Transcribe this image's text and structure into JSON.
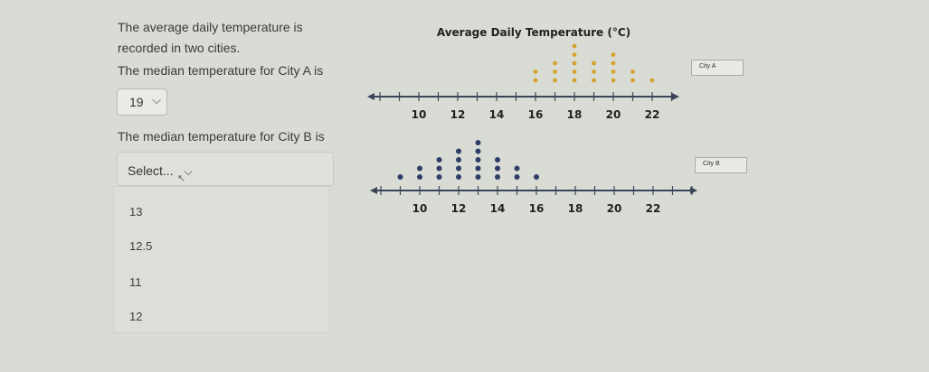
{
  "question": {
    "line1": "The average daily temperature is",
    "line2": "recorded in two cities.",
    "prompt_a": "The median temperature for City A is",
    "answer_a": "19",
    "prompt_b": "The median temperature for City B is",
    "select_placeholder": "Select...",
    "options": [
      "13",
      "12.5",
      "11",
      "12"
    ]
  },
  "colors": {
    "city_a_dot": "#d4a32f",
    "city_b_dot": "#2f3c66",
    "axis": "#3b4558"
  },
  "chart_data": [
    {
      "type": "scatter",
      "title": "Average Daily Temperature (°C)",
      "legend": "City A",
      "xlim": [
        8,
        24
      ],
      "ticks": [
        10,
        12,
        14,
        16,
        18,
        20,
        22
      ],
      "points": [
        {
          "x": 16,
          "count": 2
        },
        {
          "x": 17,
          "count": 3
        },
        {
          "x": 18,
          "count": 5
        },
        {
          "x": 19,
          "count": 3
        },
        {
          "x": 20,
          "count": 4
        },
        {
          "x": 21,
          "count": 2
        },
        {
          "x": 22,
          "count": 1
        }
      ]
    },
    {
      "type": "scatter",
      "title": "",
      "legend": "City B",
      "xlim": [
        8,
        24
      ],
      "ticks": [
        10,
        12,
        14,
        16,
        18,
        20,
        22
      ],
      "points": [
        {
          "x": 9,
          "count": 1
        },
        {
          "x": 10,
          "count": 2
        },
        {
          "x": 11,
          "count": 3
        },
        {
          "x": 12,
          "count": 4
        },
        {
          "x": 13,
          "count": 5
        },
        {
          "x": 14,
          "count": 3
        },
        {
          "x": 15,
          "count": 2
        },
        {
          "x": 16,
          "count": 1
        }
      ]
    }
  ]
}
